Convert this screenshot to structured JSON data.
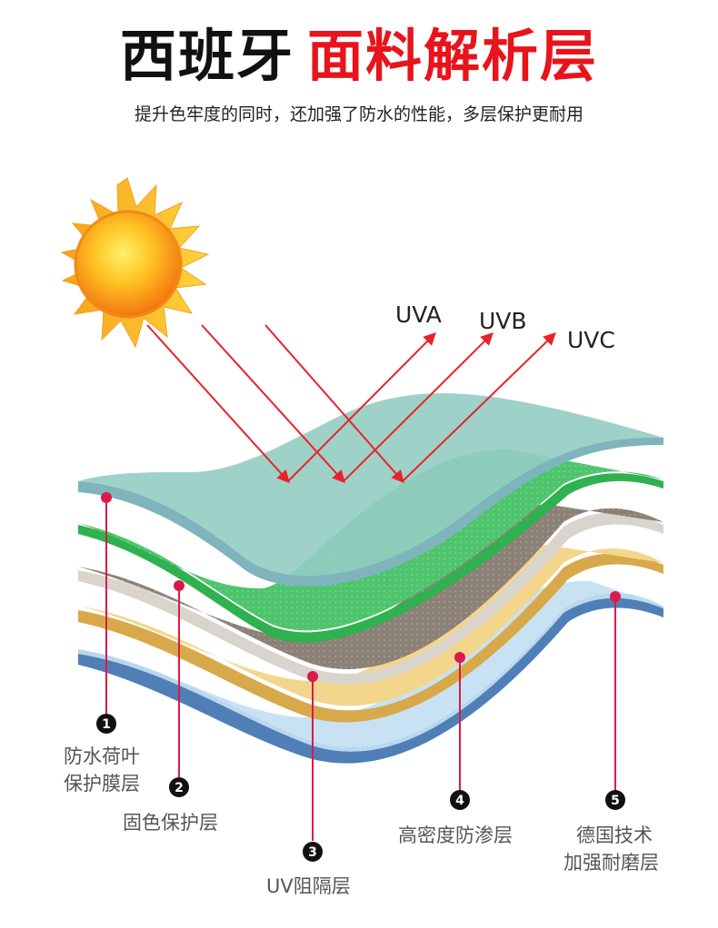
{
  "title": {
    "part1": "西班牙",
    "part2": "面料解析层"
  },
  "subtitle": "提升色牢度的同时，还加强了防水的性能，多层保护更耐用",
  "rays": [
    "UVA",
    "UVB",
    "UVC"
  ],
  "layers": [
    {
      "number": "1",
      "label_lines": [
        "防水荷叶",
        "保护膜层"
      ],
      "color": "#a9d3d9"
    },
    {
      "number": "2",
      "label_lines": [
        "固色保护层"
      ],
      "color": "#48c267"
    },
    {
      "number": "3",
      "label_lines": [
        "UV阻隔层"
      ],
      "color": "#8f8379"
    },
    {
      "number": "4",
      "label_lines": [
        "高密度防渗层"
      ],
      "color": "#f1cf7f"
    },
    {
      "number": "5",
      "label_lines": [
        "德国技术",
        "加强耐磨层"
      ],
      "color": "#b9d8ef"
    }
  ],
  "colors": {
    "ray": "#e8232a",
    "dot": "#d91a4a",
    "accent": "#e8141b"
  }
}
